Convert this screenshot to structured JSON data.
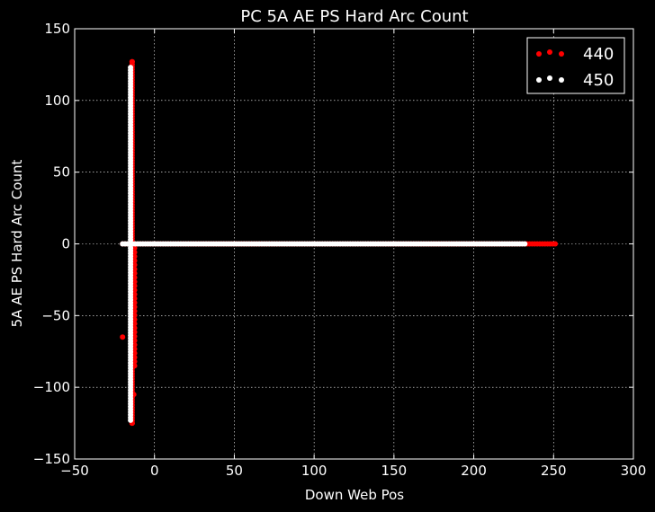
{
  "chart_data": {
    "type": "scatter",
    "title": "PC 5A AE PS Hard Arc Count",
    "xlabel": "Down Web Pos",
    "ylabel": "5A AE PS Hard Arc Count",
    "xlim": [
      -50,
      300
    ],
    "ylim": [
      -150,
      150
    ],
    "xticks": [
      -50,
      0,
      50,
      100,
      150,
      200,
      250,
      300
    ],
    "yticks": [
      -150,
      -100,
      -50,
      0,
      50,
      100,
      150
    ],
    "xtick_labels": [
      "−50",
      "0",
      "50",
      "100",
      "150",
      "200",
      "250",
      "300"
    ],
    "ytick_labels": [
      "−150",
      "−100",
      "−50",
      "0",
      "50",
      "100",
      "150"
    ],
    "grid": true,
    "legend_position": "top-right",
    "background": "#000000",
    "series": [
      {
        "name": "440",
        "color": "#ff0000",
        "segments": [
          {
            "x_range": [
              -20,
              251
            ],
            "y": 0,
            "count": 170
          },
          {
            "x": -14,
            "y_range": [
              -125,
              127
            ],
            "count": 140
          },
          {
            "x": -12.5,
            "y_range": [
              -85,
              0
            ],
            "count": 30
          }
        ],
        "points": [
          [
            -20,
            -65
          ],
          [
            -13,
            -105
          ],
          [
            -14,
            127
          ],
          [
            -14,
            -125
          ]
        ]
      },
      {
        "name": "450",
        "color": "#ffffff",
        "segments": [
          {
            "x_range": [
              -20,
              232
            ],
            "y": 0,
            "count": 160
          },
          {
            "x": -15,
            "y_range": [
              -123,
              123
            ],
            "count": 130
          }
        ],
        "points": []
      }
    ]
  }
}
